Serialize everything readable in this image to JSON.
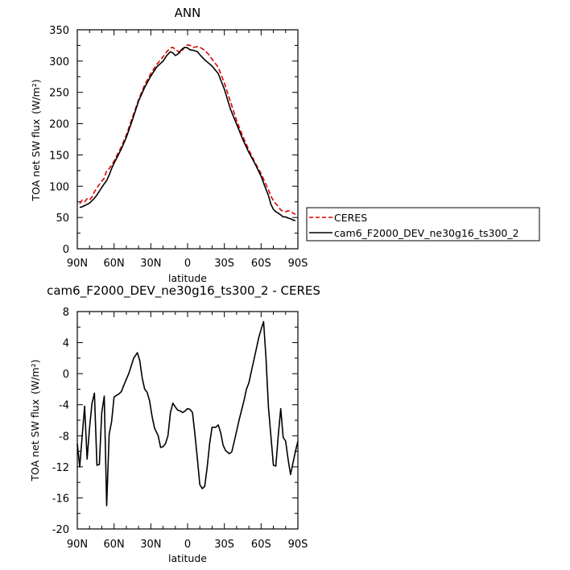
{
  "chart_data": [
    {
      "type": "line",
      "title": "ANN",
      "xlabel": "latitude",
      "ylabel": "TOA net SW flux",
      "ylabel_unit": "(W/m²)",
      "x_tick_labels": [
        "90N",
        "60N",
        "30N",
        "0",
        "30S",
        "60S",
        "90S"
      ],
      "x_ticks": [
        90,
        60,
        30,
        0,
        -30,
        -60,
        -90
      ],
      "xlim": [
        90,
        -90
      ],
      "ylim": [
        0,
        350
      ],
      "y_ticks": [
        0,
        50,
        100,
        150,
        200,
        250,
        300,
        350
      ],
      "grid": false,
      "legend_position": "right",
      "series": [
        {
          "name": "CERES",
          "color": "#dd0000",
          "dash": true,
          "x": [
            88,
            86,
            84,
            82,
            80,
            78,
            76,
            74,
            72,
            70,
            68,
            66,
            64,
            62,
            60,
            57,
            54,
            50,
            45,
            40,
            35,
            30,
            25,
            20,
            17,
            14,
            12,
            10,
            8,
            6,
            4,
            2,
            0,
            -2,
            -5,
            -8,
            -11,
            -14,
            -17,
            -20,
            -25,
            -30,
            -35,
            -40,
            -45,
            -50,
            -55,
            -60,
            -63,
            -66,
            -68,
            -70,
            -72,
            -74,
            -76,
            -78,
            -80,
            -82,
            -84,
            -86,
            -88
          ],
          "y": [
            72,
            78,
            75,
            80,
            78,
            83,
            91,
            97,
            103,
            108,
            113,
            125,
            128,
            134,
            140,
            152,
            163,
            182,
            210,
            238,
            262,
            280,
            295,
            307,
            315,
            321,
            322,
            318,
            316,
            313,
            318,
            324,
            326,
            325,
            322,
            323,
            321,
            317,
            311,
            303,
            290,
            265,
            235,
            205,
            180,
            158,
            138,
            120,
            107,
            94,
            84,
            77,
            72,
            68,
            62,
            60,
            59,
            61,
            60,
            57,
            55
          ]
        },
        {
          "name": "cam6_F2000_DEV_ne30g16_ts300_2",
          "color": "#000000",
          "dash": false,
          "x": [
            88,
            86,
            84,
            82,
            80,
            78,
            76,
            74,
            72,
            70,
            68,
            66,
            64,
            62,
            60,
            57,
            54,
            50,
            45,
            40,
            35,
            30,
            25,
            20,
            17,
            14,
            12,
            10,
            8,
            6,
            4,
            2,
            0,
            -2,
            -5,
            -8,
            -11,
            -14,
            -17,
            -20,
            -25,
            -30,
            -35,
            -40,
            -45,
            -50,
            -55,
            -60,
            -63,
            -66,
            -68,
            -70,
            -72,
            -74,
            -76,
            -78,
            -80,
            -82,
            -84,
            -86,
            -88
          ],
          "y": [
            66,
            67,
            69,
            71,
            73,
            77,
            81,
            86,
            92,
            98,
            104,
            109,
            118,
            128,
            137,
            148,
            160,
            178,
            206,
            236,
            258,
            276,
            291,
            300,
            309,
            315,
            313,
            309,
            311,
            316,
            320,
            322,
            321,
            318,
            317,
            315,
            308,
            302,
            297,
            292,
            280,
            255,
            223,
            199,
            175,
            154,
            136,
            116,
            100,
            85,
            71,
            63,
            59,
            57,
            54,
            51,
            51,
            49,
            48,
            46,
            45
          ]
        }
      ]
    },
    {
      "type": "line",
      "title": "cam6_F2000_DEV_ne30g16_ts300_2 - CERES",
      "xlabel": "latitude",
      "ylabel": "TOA net SW flux",
      "ylabel_unit": "(W/m²)",
      "x_tick_labels": [
        "90N",
        "60N",
        "30N",
        "0",
        "30S",
        "60S",
        "90S"
      ],
      "x_ticks": [
        90,
        60,
        30,
        0,
        -30,
        -60,
        -90
      ],
      "xlim": [
        90,
        -90
      ],
      "ylim": [
        -20,
        8
      ],
      "y_ticks": [
        -20,
        -16,
        -12,
        -8,
        -4,
        0,
        4,
        8
      ],
      "grid": false,
      "series": [
        {
          "color": "#000000",
          "dash": false,
          "x": [
            90,
            88,
            86,
            84,
            82,
            80,
            78,
            76,
            74,
            72,
            70,
            68,
            66,
            64,
            62,
            60,
            56,
            54,
            52,
            48,
            46,
            44,
            41,
            39,
            37,
            35,
            33,
            31,
            29,
            27,
            24,
            22,
            20,
            18,
            16,
            14,
            12,
            10,
            8,
            6,
            4,
            2,
            0,
            -2,
            -4,
            -6,
            -8,
            -10,
            -12,
            -14,
            -16,
            -18,
            -20,
            -23,
            -25,
            -27,
            -29,
            -31,
            -34,
            -36,
            -38,
            -40,
            -42,
            -46,
            -48,
            -50,
            -53,
            -55,
            -58,
            -60,
            -62,
            -64,
            -66,
            -70,
            -72,
            -74,
            -76,
            -78,
            -80,
            -82,
            -84,
            -86,
            -88,
            -90
          ],
          "y": [
            -9,
            -12,
            -8,
            -4.2,
            -11,
            -7,
            -3.8,
            -2.5,
            -11.8,
            -11.7,
            -5,
            -2.9,
            -17,
            -7.8,
            -6.2,
            -3,
            -2.6,
            -2.3,
            -1.5,
            0,
            1,
            2,
            2.7,
            1.7,
            -0.6,
            -2,
            -2.4,
            -3.5,
            -5.5,
            -7,
            -8,
            -9.5,
            -9.4,
            -9,
            -8,
            -5,
            -3.8,
            -4.3,
            -4.7,
            -4.8,
            -5,
            -4.8,
            -4.5,
            -4.6,
            -5,
            -7.8,
            -11,
            -14.3,
            -14.8,
            -14.5,
            -12,
            -9,
            -6.9,
            -6.9,
            -6.6,
            -7.6,
            -9.2,
            -9.9,
            -10.3,
            -10.1,
            -8.8,
            -7.4,
            -6,
            -3.5,
            -2,
            -1.2,
            1,
            2.4,
            4.6,
            5.7,
            6.7,
            2,
            -4.4,
            -11.8,
            -11.9,
            -8,
            -4.5,
            -8.2,
            -8.7,
            -11,
            -13,
            -11.5,
            -10,
            -8.7
          ]
        }
      ]
    }
  ]
}
